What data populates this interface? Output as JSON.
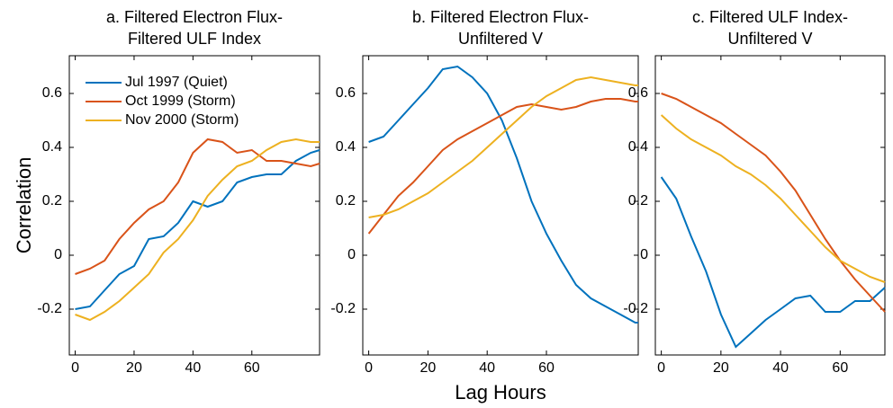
{
  "chart_data": [
    {
      "type": "line",
      "title": [
        "a. Filtered Electron Flux-",
        "Filtered ULF Index"
      ],
      "ylabel": "Correlation",
      "legend": "upper left",
      "x": [
        0,
        5,
        10,
        15,
        20,
        25,
        30,
        35,
        40,
        45,
        50,
        55,
        60,
        65,
        70,
        75,
        80,
        83
      ],
      "xlim": [
        -2,
        83
      ],
      "xticks": [
        0,
        20,
        40,
        60
      ],
      "ylim": [
        -0.37,
        0.74
      ],
      "yticks": [
        -0.2,
        0,
        0.2,
        0.4,
        0.6
      ],
      "series": [
        {
          "name": "Jul 1997 (Quiet)",
          "color": "#0072BD",
          "values": [
            -0.2,
            -0.19,
            -0.13,
            -0.07,
            -0.04,
            0.06,
            0.07,
            0.12,
            0.2,
            0.18,
            0.2,
            0.27,
            0.29,
            0.3,
            0.3,
            0.35,
            0.38,
            0.39
          ]
        },
        {
          "name": "Oct 1999 (Storm)",
          "color": "#D95319",
          "values": [
            -0.07,
            -0.05,
            -0.02,
            0.06,
            0.12,
            0.17,
            0.2,
            0.27,
            0.38,
            0.43,
            0.42,
            0.38,
            0.39,
            0.35,
            0.35,
            0.34,
            0.33,
            0.34
          ]
        },
        {
          "name": "Nov 2000 (Storm)",
          "color": "#EDB120",
          "values": [
            -0.22,
            -0.24,
            -0.21,
            -0.17,
            -0.12,
            -0.07,
            0.01,
            0.06,
            0.13,
            0.22,
            0.28,
            0.33,
            0.35,
            0.39,
            0.42,
            0.43,
            0.42,
            0.42
          ]
        }
      ]
    },
    {
      "type": "line",
      "title": [
        "b. Filtered Electron Flux-",
        "Unfiltered V"
      ],
      "xlabel": "Lag Hours",
      "x": [
        0,
        5,
        10,
        15,
        20,
        25,
        30,
        35,
        40,
        45,
        50,
        55,
        60,
        65,
        70,
        75,
        80,
        85,
        90,
        91
      ],
      "xlim": [
        -2,
        91
      ],
      "xticks": [
        0,
        20,
        40,
        60
      ],
      "ylim": [
        -0.37,
        0.74
      ],
      "yticks": [
        -0.2,
        0,
        0.2,
        0.4,
        0.6
      ],
      "series": [
        {
          "color": "#0072BD",
          "values": [
            0.42,
            0.44,
            0.5,
            0.56,
            0.62,
            0.69,
            0.7,
            0.66,
            0.6,
            0.5,
            0.36,
            0.2,
            0.08,
            -0.02,
            -0.11,
            -0.16,
            -0.19,
            -0.22,
            -0.25,
            -0.25
          ]
        },
        {
          "color": "#D95319",
          "values": [
            0.08,
            0.15,
            0.22,
            0.27,
            0.33,
            0.39,
            0.43,
            0.46,
            0.49,
            0.52,
            0.55,
            0.56,
            0.55,
            0.54,
            0.55,
            0.57,
            0.58,
            0.58,
            0.57,
            0.57
          ]
        },
        {
          "color": "#EDB120",
          "values": [
            0.14,
            0.15,
            0.17,
            0.2,
            0.23,
            0.27,
            0.31,
            0.35,
            0.4,
            0.45,
            0.5,
            0.55,
            0.59,
            0.62,
            0.65,
            0.66,
            0.65,
            0.64,
            0.63,
            0.63
          ]
        }
      ]
    },
    {
      "type": "line",
      "title": [
        "c. Filtered ULF Index-",
        "Unfiltered V"
      ],
      "x": [
        0,
        5,
        10,
        15,
        20,
        25,
        30,
        35,
        40,
        45,
        50,
        55,
        60,
        65,
        70,
        75
      ],
      "xlim": [
        -2,
        75
      ],
      "xticks": [
        0,
        20,
        40,
        60
      ],
      "ylim": [
        -0.37,
        0.74
      ],
      "yticks": [
        -0.2,
        0,
        0.2,
        0.4,
        0.6
      ],
      "series": [
        {
          "color": "#0072BD",
          "values": [
            0.29,
            0.21,
            0.07,
            -0.06,
            -0.22,
            -0.34,
            -0.29,
            -0.24,
            -0.2,
            -0.16,
            -0.15,
            -0.21,
            -0.21,
            -0.17,
            -0.17,
            -0.12
          ]
        },
        {
          "color": "#D95319",
          "values": [
            0.6,
            0.58,
            0.55,
            0.52,
            0.49,
            0.45,
            0.41,
            0.37,
            0.31,
            0.24,
            0.15,
            0.06,
            -0.02,
            -0.09,
            -0.15,
            -0.21
          ]
        },
        {
          "color": "#EDB120",
          "values": [
            0.52,
            0.47,
            0.43,
            0.4,
            0.37,
            0.33,
            0.3,
            0.26,
            0.21,
            0.15,
            0.09,
            0.03,
            -0.02,
            -0.05,
            -0.08,
            -0.1
          ]
        }
      ]
    }
  ]
}
